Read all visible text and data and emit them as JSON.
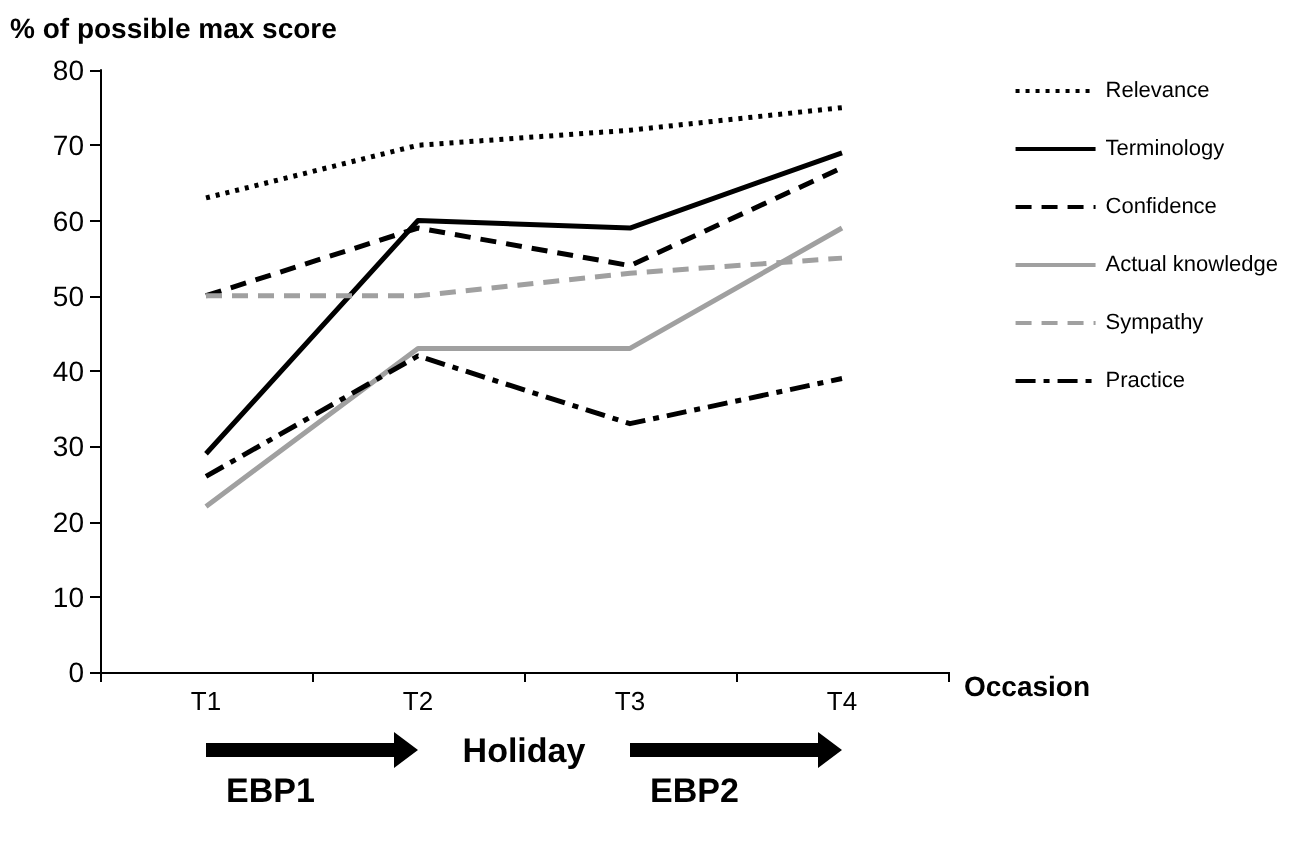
{
  "chart_data": {
    "type": "line",
    "ylabel": "% of possible max score",
    "xlabel": "Occasion",
    "categories": [
      "T1",
      "T2",
      "T3",
      "T4"
    ],
    "series": [
      {
        "name": "Relevance",
        "color": "#000000",
        "line_style": "dotted",
        "values": [
          63,
          70,
          72,
          75
        ]
      },
      {
        "name": "Terminology",
        "color": "#000000",
        "line_style": "solid",
        "values": [
          29,
          60,
          59,
          69
        ]
      },
      {
        "name": "Confidence",
        "color": "#000000",
        "line_style": "dashed",
        "values": [
          50,
          59,
          54,
          67
        ]
      },
      {
        "name": "Actual knowledge",
        "color": "#a0a0a0",
        "line_style": "solid",
        "values": [
          22,
          43,
          43,
          59
        ]
      },
      {
        "name": "Sympathy",
        "color": "#a0a0a0",
        "line_style": "dashed",
        "values": [
          50,
          50,
          53,
          55
        ]
      },
      {
        "name": "Practice",
        "color": "#000000",
        "line_style": "dashdot",
        "values": [
          26,
          42,
          33,
          39
        ]
      }
    ],
    "ylim": [
      0,
      80
    ],
    "yticks": [
      0,
      10,
      20,
      30,
      40,
      50,
      60,
      70,
      80
    ],
    "grid": false,
    "legend": "right",
    "marker": "none",
    "annotations": [
      "EBP1",
      "Holiday",
      "EBP2"
    ]
  }
}
